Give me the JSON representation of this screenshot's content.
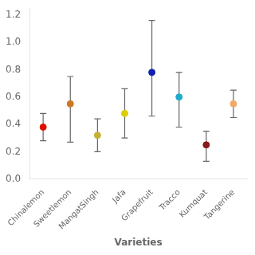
{
  "chart_data": {
    "type": "scatter",
    "xlabel": "Varieties",
    "categories": [
      "Chinalemon",
      "Sweetlemon",
      "MangatSingh",
      "Jafa",
      "Grapefruit",
      "Tracco",
      "Kumquat",
      "Tangerine"
    ],
    "values": [
      0.38,
      0.55,
      0.32,
      0.48,
      0.78,
      0.6,
      0.25,
      0.55
    ],
    "lower_errors": [
      0.1,
      0.28,
      0.12,
      0.18,
      0.32,
      0.22,
      0.12,
      0.1
    ],
    "upper_errors": [
      0.1,
      0.2,
      0.12,
      0.18,
      0.38,
      0.18,
      0.1,
      0.1
    ],
    "colors": [
      "#DD1100",
      "#CC7722",
      "#C8B030",
      "#DDCC00",
      "#1020B0",
      "#22AACC",
      "#881A1A",
      "#F0AA66"
    ],
    "ylim": [
      0.0,
      1.25
    ],
    "yticks": [
      {
        "value": 0.0,
        "label": "0.0"
      },
      {
        "value": 0.2,
        "label": "0.2"
      },
      {
        "value": 0.4,
        "label": "0.4"
      },
      {
        "value": 0.6,
        "label": "0.6"
      },
      {
        "value": 0.8,
        "label": "0.8"
      },
      {
        "value": 1.0,
        "label": "1.0"
      },
      {
        "value": 1.2,
        "label": "1.2"
      }
    ],
    "grid": false,
    "marker": "circle"
  }
}
